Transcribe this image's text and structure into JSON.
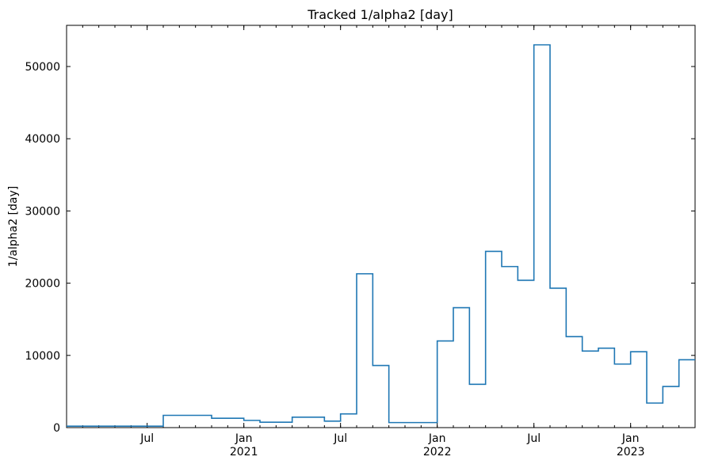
{
  "chart_data": {
    "type": "step",
    "title": "Tracked 1/alpha2 [day]",
    "y_label": "1/alpha2 [day]",
    "x": [
      "2020-02",
      "2020-03",
      "2020-04",
      "2020-05",
      "2020-06",
      "2020-07",
      "2020-08",
      "2020-09",
      "2020-10",
      "2020-11",
      "2020-12",
      "2021-01",
      "2021-02",
      "2021-03",
      "2021-04",
      "2021-05",
      "2021-06",
      "2021-07",
      "2021-08",
      "2021-09",
      "2021-10",
      "2021-11",
      "2021-12",
      "2022-01",
      "2022-02",
      "2022-03",
      "2022-04",
      "2022-05",
      "2022-06",
      "2022-07",
      "2022-08",
      "2022-09",
      "2022-10",
      "2022-11",
      "2022-12",
      "2023-01",
      "2023-02",
      "2023-03",
      "2023-04"
    ],
    "series": [
      {
        "color": "#1f77b4",
        "values": [
          200,
          200,
          200,
          200,
          200,
          200,
          1700,
          1700,
          1700,
          1300,
          1300,
          1000,
          750,
          750,
          1450,
          1450,
          900,
          1900,
          21300,
          8600,
          700,
          700,
          700,
          12000,
          16600,
          6000,
          24400,
          22300,
          20400,
          53000,
          19300,
          12600,
          10600,
          11000,
          8800,
          10500,
          3400,
          5700,
          9400
        ]
      }
    ],
    "xlim": [
      "2020-02",
      "2023-05"
    ],
    "xticks": [
      {
        "value": "2020-07",
        "label": "Jul"
      },
      {
        "value": "2021-01",
        "label": "Jan 2021"
      },
      {
        "value": "2021-07",
        "label": "Jul"
      },
      {
        "value": "2022-01",
        "label": "Jan 2022"
      },
      {
        "value": "2022-07",
        "label": "Jul"
      },
      {
        "value": "2023-01",
        "label": "Jan 2023"
      }
    ],
    "ylim": [
      0,
      55700
    ],
    "yticks": [
      0,
      10000,
      20000,
      30000,
      40000,
      50000
    ]
  }
}
